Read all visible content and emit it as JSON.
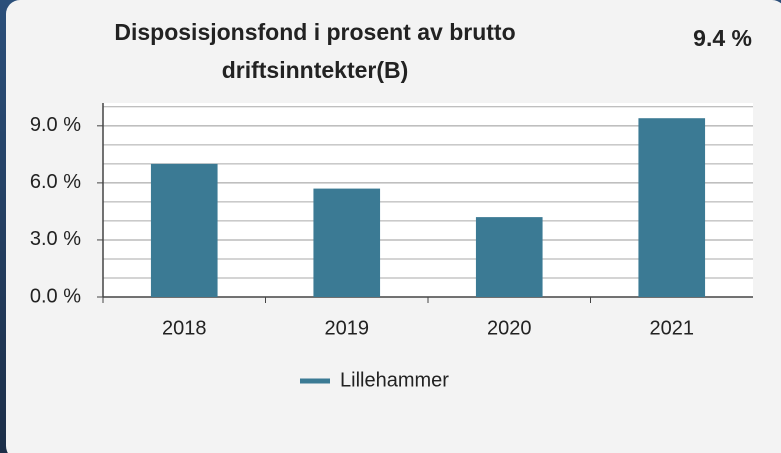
{
  "chart_data": {
    "type": "bar",
    "title": "Disposisjonsfond i prosent av brutto",
    "title_line2": "driftsinntekter(B)",
    "headline": "9.4 %",
    "categories": [
      "2018",
      "2019",
      "2020",
      "2021"
    ],
    "series": [
      {
        "name": "Lillehammer",
        "color": "#3b7a94",
        "values": [
          7.0,
          5.7,
          4.2,
          9.4
        ]
      }
    ],
    "ylim": [
      0,
      10.2
    ],
    "yticks": [
      {
        "value": 0,
        "label": "0.0 %"
      },
      {
        "value": 3,
        "label": "3.0 %"
      },
      {
        "value": 6,
        "label": "6.0 %"
      },
      {
        "value": 9,
        "label": "9.0 %"
      }
    ],
    "minor_yticks": [
      1,
      2,
      4,
      5,
      7,
      8,
      10
    ],
    "grid": true,
    "legend": "bottom"
  }
}
